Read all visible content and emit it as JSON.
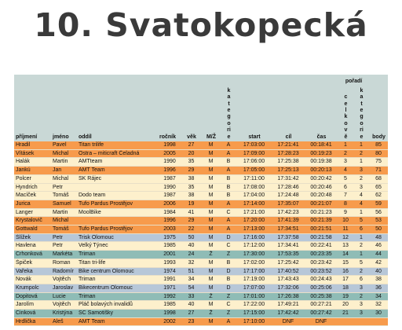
{
  "header": {
    "title": "10. Svatokopecká"
  },
  "table": {
    "group": "pořadí",
    "columns": [
      "příjmení",
      "jméno",
      "oddíl",
      "ročník",
      "věk",
      "M/Ž",
      "kategorie",
      "start",
      "cíl",
      "čas",
      "celkově",
      "kategorie",
      "body"
    ],
    "rows": [
      [
        "Hradil",
        "Pavel",
        "Titan trilife",
        1998,
        27,
        "M",
        "A",
        "17:03:00",
        "17:21:41",
        "00:18:41",
        1,
        1,
        85
      ],
      [
        "Vításek",
        "Michal",
        "Ostra – miticraft Čeladná",
        2005,
        20,
        "M",
        "A",
        "17:09:00",
        "17:28:23",
        "00:19:23",
        2,
        2,
        80
      ],
      [
        "Halák",
        "Martin",
        "AMTteam",
        1990,
        35,
        "M",
        "B",
        "17:06:00",
        "17:25:38",
        "00:19:38",
        3,
        1,
        75
      ],
      [
        "Jankú",
        "Jan",
        "AMT Team",
        1996,
        29,
        "M",
        "A",
        "17:05:00",
        "17:25:13",
        "00:20:13",
        4,
        3,
        71
      ],
      [
        "Polcer",
        "Michal",
        "SK Rájec",
        1987,
        38,
        "M",
        "B",
        "17:11:00",
        "17:31:42",
        "00:20:42",
        5,
        2,
        68
      ],
      [
        "Hyndrich",
        "Petr",
        null,
        1990,
        35,
        "M",
        "B",
        "17:08:00",
        "17:28:46",
        "00:20:46",
        6,
        3,
        65
      ],
      [
        "Macíček",
        "Tomáš",
        "Dodo team",
        1987,
        38,
        "M",
        "B",
        "17:04:00",
        "17:24:48",
        "00:20:48",
        7,
        4,
        62
      ],
      [
        "Jurica",
        "Samuel",
        "Tufo Pardus Prostějov",
        2006,
        19,
        "M",
        "A",
        "17:14:00",
        "17:35:07",
        "00:21:07",
        8,
        4,
        59
      ],
      [
        "Langer",
        "Martin",
        "MoolBike",
        1984,
        41,
        "M",
        "C",
        "17:21:00",
        "17:42:23",
        "00:21:23",
        9,
        1,
        56
      ],
      [
        "Krystalovič",
        "Michal",
        null,
        1996,
        29,
        "M",
        "A",
        "17:20:00",
        "17:41:39",
        "00:21:39",
        10,
        5,
        53
      ],
      [
        "Gottwald",
        "Tomáš",
        "Tufo Pardus Prostějov",
        2003,
        22,
        "M",
        "A",
        "17:13:00",
        "17:34:51",
        "00:21:51",
        11,
        6,
        50
      ],
      [
        "Šlížek",
        "Petr",
        "Trisk Olomouc",
        1975,
        50,
        "M",
        "D",
        "17:16:00",
        "17:37:58",
        "00:21:58",
        12,
        1,
        48
      ],
      [
        "Havlena",
        "Petr",
        "Velký Týnec",
        1985,
        40,
        "M",
        "C",
        "17:12:00",
        "17:34:41",
        "00:22:41",
        13,
        2,
        46
      ],
      [
        "Crhonková",
        "Markéta",
        "Triman",
        2001,
        24,
        "Ž",
        "Z",
        "17:30:00",
        "17:53:35",
        "00:23:35",
        14,
        1,
        44
      ],
      [
        "Špiček",
        "Roman",
        "Titan tri-life",
        1993,
        32,
        "M",
        "B",
        "17:02:00",
        "17:25:42",
        "00:23:42",
        15,
        5,
        42
      ],
      [
        "Vařeka",
        "Radomír",
        "Bike centrum Olomouc",
        1974,
        51,
        "M",
        "D",
        "17:17:00",
        "17:40:52",
        "00:23:52",
        16,
        2,
        40
      ],
      [
        "Novák",
        "Vojtěch",
        "Triman",
        1991,
        34,
        "M",
        "B",
        "17:19:00",
        "17:43:43",
        "00:24:43",
        17,
        6,
        38
      ],
      [
        "Krumpolc",
        "Jaroslav",
        "Bikecentrum Olomouc",
        1971,
        54,
        "M",
        "D",
        "17:07:00",
        "17:32:06",
        "00:25:06",
        18,
        3,
        36
      ],
      [
        "Dopitová",
        "Lucie",
        "Triman",
        1992,
        33,
        "Ž",
        "Z",
        "17:01:00",
        "17:26:38",
        "00:25:38",
        19,
        2,
        34
      ],
      [
        "Jarolím",
        "Vojtěch",
        "Pláč bolavých invalidů",
        1985,
        40,
        "M",
        "C",
        "17:22:00",
        "17:49:21",
        "00:27:21",
        20,
        3,
        32
      ],
      [
        "Cinková",
        "Kristýna",
        "SC Samotišky",
        1998,
        27,
        "Ž",
        "Z",
        "17:15:00",
        "17:42:42",
        "00:27:42",
        21,
        3,
        30
      ],
      [
        "Hrdlička",
        "Aleš",
        "AMT Team",
        2002,
        23,
        "M",
        "A",
        "17:10:00",
        "DNF",
        "DNF",
        null,
        null,
        null
      ]
    ]
  }
}
